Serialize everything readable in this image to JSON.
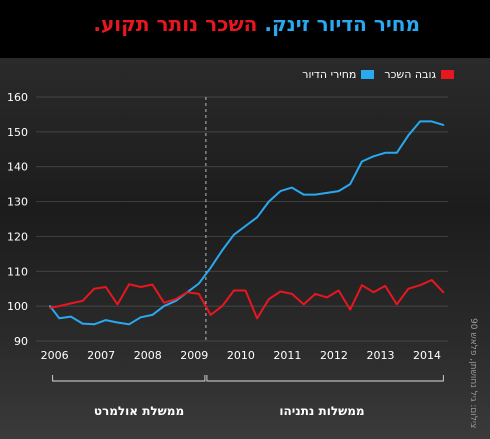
{
  "header": {
    "title_part1": "מחיר הדיור זינק.",
    "title_part2": "השכר נותר תקוע."
  },
  "legend": {
    "housing_label": "מחירי הדיור",
    "wage_label": "גובה השכר"
  },
  "eras": [
    {
      "label": "ממשלת אולמרט",
      "from": 2006.0,
      "to": 2009.25
    },
    {
      "label": "ממשלות נתניהו",
      "from": 2009.25,
      "to": 2014.35
    }
  ],
  "credit": "צילום: גיל נחושתן, פלאש 90",
  "colors": {
    "housing": "#29a9f0",
    "wage": "#e8171f",
    "header_bg": "#000000",
    "text": "#ffffff"
  },
  "chart_data": {
    "type": "line",
    "xlim": [
      2005.6,
      2014.45
    ],
    "ylim": [
      90,
      160
    ],
    "yticks": [
      90,
      100,
      110,
      120,
      130,
      140,
      150,
      160
    ],
    "xticks": [
      2006,
      2007,
      2008,
      2009,
      2010,
      2011,
      2012,
      2013,
      2014
    ],
    "grid": true,
    "legend_position": "top-right",
    "annotation_line_x": 2009.25,
    "series": [
      {
        "name": "מחירי הדיור",
        "color": "#29a9f0",
        "x": [
          2005.9,
          2006.1,
          2006.35,
          2006.6,
          2006.85,
          2007.1,
          2007.35,
          2007.6,
          2007.85,
          2008.1,
          2008.35,
          2008.6,
          2008.85,
          2009.1,
          2009.35,
          2009.6,
          2009.85,
          2010.1,
          2010.35,
          2010.6,
          2010.85,
          2011.1,
          2011.35,
          2011.6,
          2011.85,
          2012.1,
          2012.35,
          2012.6,
          2012.85,
          2013.1,
          2013.35,
          2013.6,
          2013.85,
          2014.1,
          2014.35
        ],
        "y": [
          100,
          96.5,
          97,
          95,
          94.8,
          96,
          95.3,
          94.8,
          96.8,
          97.5,
          100,
          101.5,
          104,
          106.5,
          111,
          116,
          120.5,
          123,
          125.5,
          130,
          133,
          134,
          132,
          132,
          132.5,
          133,
          135,
          141.5,
          143,
          144,
          144,
          149,
          153,
          153,
          152
        ]
      },
      {
        "name": "גובה השכר",
        "color": "#e8171f",
        "x": [
          2005.9,
          2006.1,
          2006.35,
          2006.6,
          2006.85,
          2007.1,
          2007.35,
          2007.6,
          2007.85,
          2008.1,
          2008.35,
          2008.6,
          2008.85,
          2009.1,
          2009.35,
          2009.6,
          2009.85,
          2010.1,
          2010.35,
          2010.6,
          2010.85,
          2011.1,
          2011.35,
          2011.6,
          2011.85,
          2012.1,
          2012.35,
          2012.6,
          2012.85,
          2013.1,
          2013.35,
          2013.6,
          2013.85,
          2014.1,
          2014.35
        ],
        "y": [
          99.5,
          100,
          100.8,
          101.5,
          105,
          105.5,
          100.5,
          106.3,
          105.5,
          106.2,
          101,
          102,
          104,
          103.5,
          97.5,
          100,
          104.5,
          104.5,
          96.5,
          102,
          104.2,
          103.5,
          100.5,
          103.5,
          102.5,
          104.5,
          99,
          106,
          104,
          105.8,
          100.5,
          105,
          106,
          107.5,
          104
        ]
      }
    ]
  }
}
